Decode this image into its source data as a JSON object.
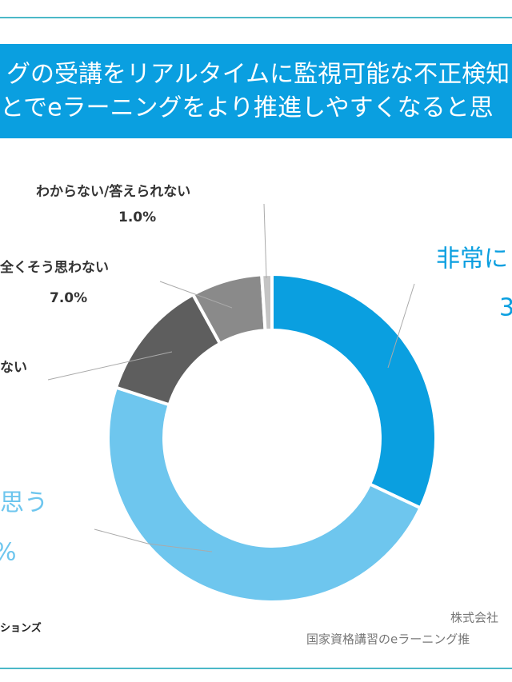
{
  "chart_data": {
    "type": "donut",
    "title": [
      "グの受講をリアルタイムに監視可能な不正検知",
      "とでeラーニングをより推進しやすくなると思"
    ],
    "categories": [
      "非常に",
      "思う",
      "ない",
      "全くそう思わない",
      "わからない/答えられない"
    ],
    "values": [
      32,
      48,
      12,
      7,
      1
    ],
    "value_labels": [
      null,
      null,
      null,
      "7.0%",
      "1.0%"
    ],
    "colors": [
      "#0a9fe0",
      "#6ec6ee",
      "#5e5e5e",
      "#8a8a8a",
      "#c4c4c4"
    ],
    "annotations": [
      "3",
      "%"
    ],
    "source": [
      "ションズ",
      "株式会社",
      "国家資格講習のeラーニング推"
    ]
  }
}
